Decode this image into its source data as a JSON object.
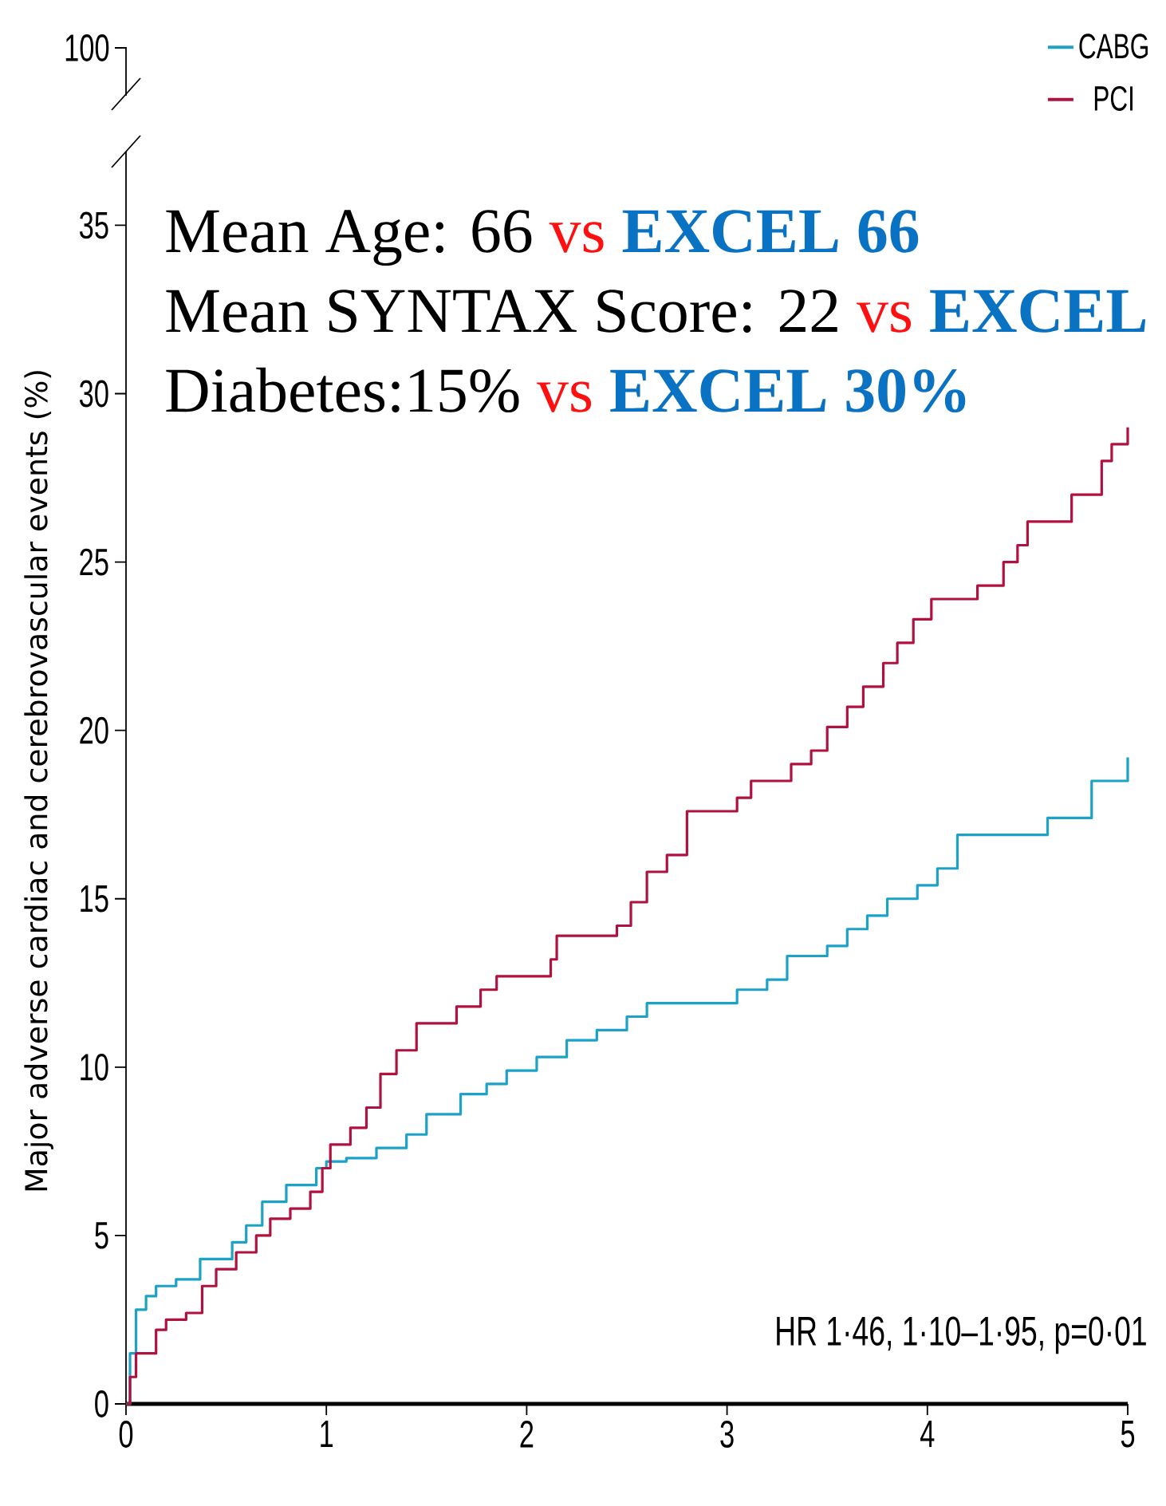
{
  "chart_data": {
    "type": "step",
    "ylabel": "Major adverse cardiac and cerebrovascular events (%)",
    "xlim": [
      0,
      5
    ],
    "xticks": [
      0,
      1,
      2,
      3,
      4,
      5
    ],
    "ylim": [
      0,
      37
    ],
    "yticks": [
      0,
      5,
      10,
      15,
      20,
      25,
      30,
      35
    ],
    "legend": "top right",
    "grid": false,
    "marker": "none",
    "line_style": "solid",
    "annotations": [
      "100",
      "Mean Age: 66",
      "vs",
      "EXCEL 66",
      "Mean SYNTAX Score: 22",
      "vs",
      "EXCEL",
      "Diabetes:15%",
      "vs",
      "EXCEL 30%",
      "HR 1·46, 1·10–1·95, p=0·01"
    ],
    "series": [
      {
        "name": "CABG",
        "color": "#1ba2c6",
        "x": [
          0,
          0.02,
          0.05,
          0.1,
          0.15,
          0.25,
          0.37,
          0.53,
          0.55,
          0.6,
          0.68,
          0.8,
          0.85,
          0.95,
          1.0,
          1.1,
          1.25,
          1.4,
          1.5,
          1.67,
          1.8,
          1.9,
          2.05,
          2.2,
          2.35,
          2.5,
          2.6,
          3.05,
          3.2,
          3.3,
          3.5,
          3.6,
          3.7,
          3.8,
          3.95,
          4.05,
          4.15,
          4.6,
          4.82,
          5.0
        ],
        "values": [
          0,
          1.5,
          2.8,
          3.2,
          3.5,
          3.7,
          4.3,
          4.8,
          4.8,
          5.3,
          6.0,
          6.5,
          6.5,
          7.0,
          7.2,
          7.3,
          7.6,
          8.0,
          8.6,
          9.2,
          9.5,
          9.9,
          10.3,
          10.8,
          11.1,
          11.5,
          11.9,
          12.3,
          12.6,
          13.3,
          13.6,
          14.1,
          14.5,
          15.0,
          15.4,
          15.9,
          16.9,
          17.4,
          18.5,
          19.2
        ]
      },
      {
        "name": "PCI",
        "color": "#b01240",
        "x": [
          0,
          0.02,
          0.05,
          0.15,
          0.2,
          0.3,
          0.38,
          0.45,
          0.55,
          0.65,
          0.72,
          0.82,
          0.92,
          0.98,
          1.02,
          1.12,
          1.2,
          1.27,
          1.35,
          1.45,
          1.65,
          1.77,
          1.85,
          2.12,
          2.15,
          2.45,
          2.52,
          2.6,
          2.7,
          2.8,
          3.05,
          3.12,
          3.32,
          3.42,
          3.5,
          3.6,
          3.68,
          3.78,
          3.85,
          3.93,
          4.02,
          4.25,
          4.38,
          4.45,
          4.5,
          4.72,
          4.87,
          4.92,
          5.0
        ],
        "values": [
          0,
          0.8,
          1.5,
          2.2,
          2.5,
          2.7,
          3.5,
          4.0,
          4.5,
          5.0,
          5.5,
          5.8,
          6.3,
          7.0,
          7.7,
          8.2,
          8.8,
          9.8,
          10.5,
          11.3,
          11.8,
          12.3,
          12.7,
          13.2,
          13.9,
          14.2,
          14.9,
          15.8,
          16.3,
          17.6,
          18.0,
          18.5,
          19.0,
          19.4,
          20.1,
          20.7,
          21.3,
          22.0,
          22.6,
          23.3,
          23.9,
          24.3,
          25.0,
          25.5,
          26.2,
          27.0,
          28.0,
          28.5,
          29.0
        ]
      }
    ]
  }
}
